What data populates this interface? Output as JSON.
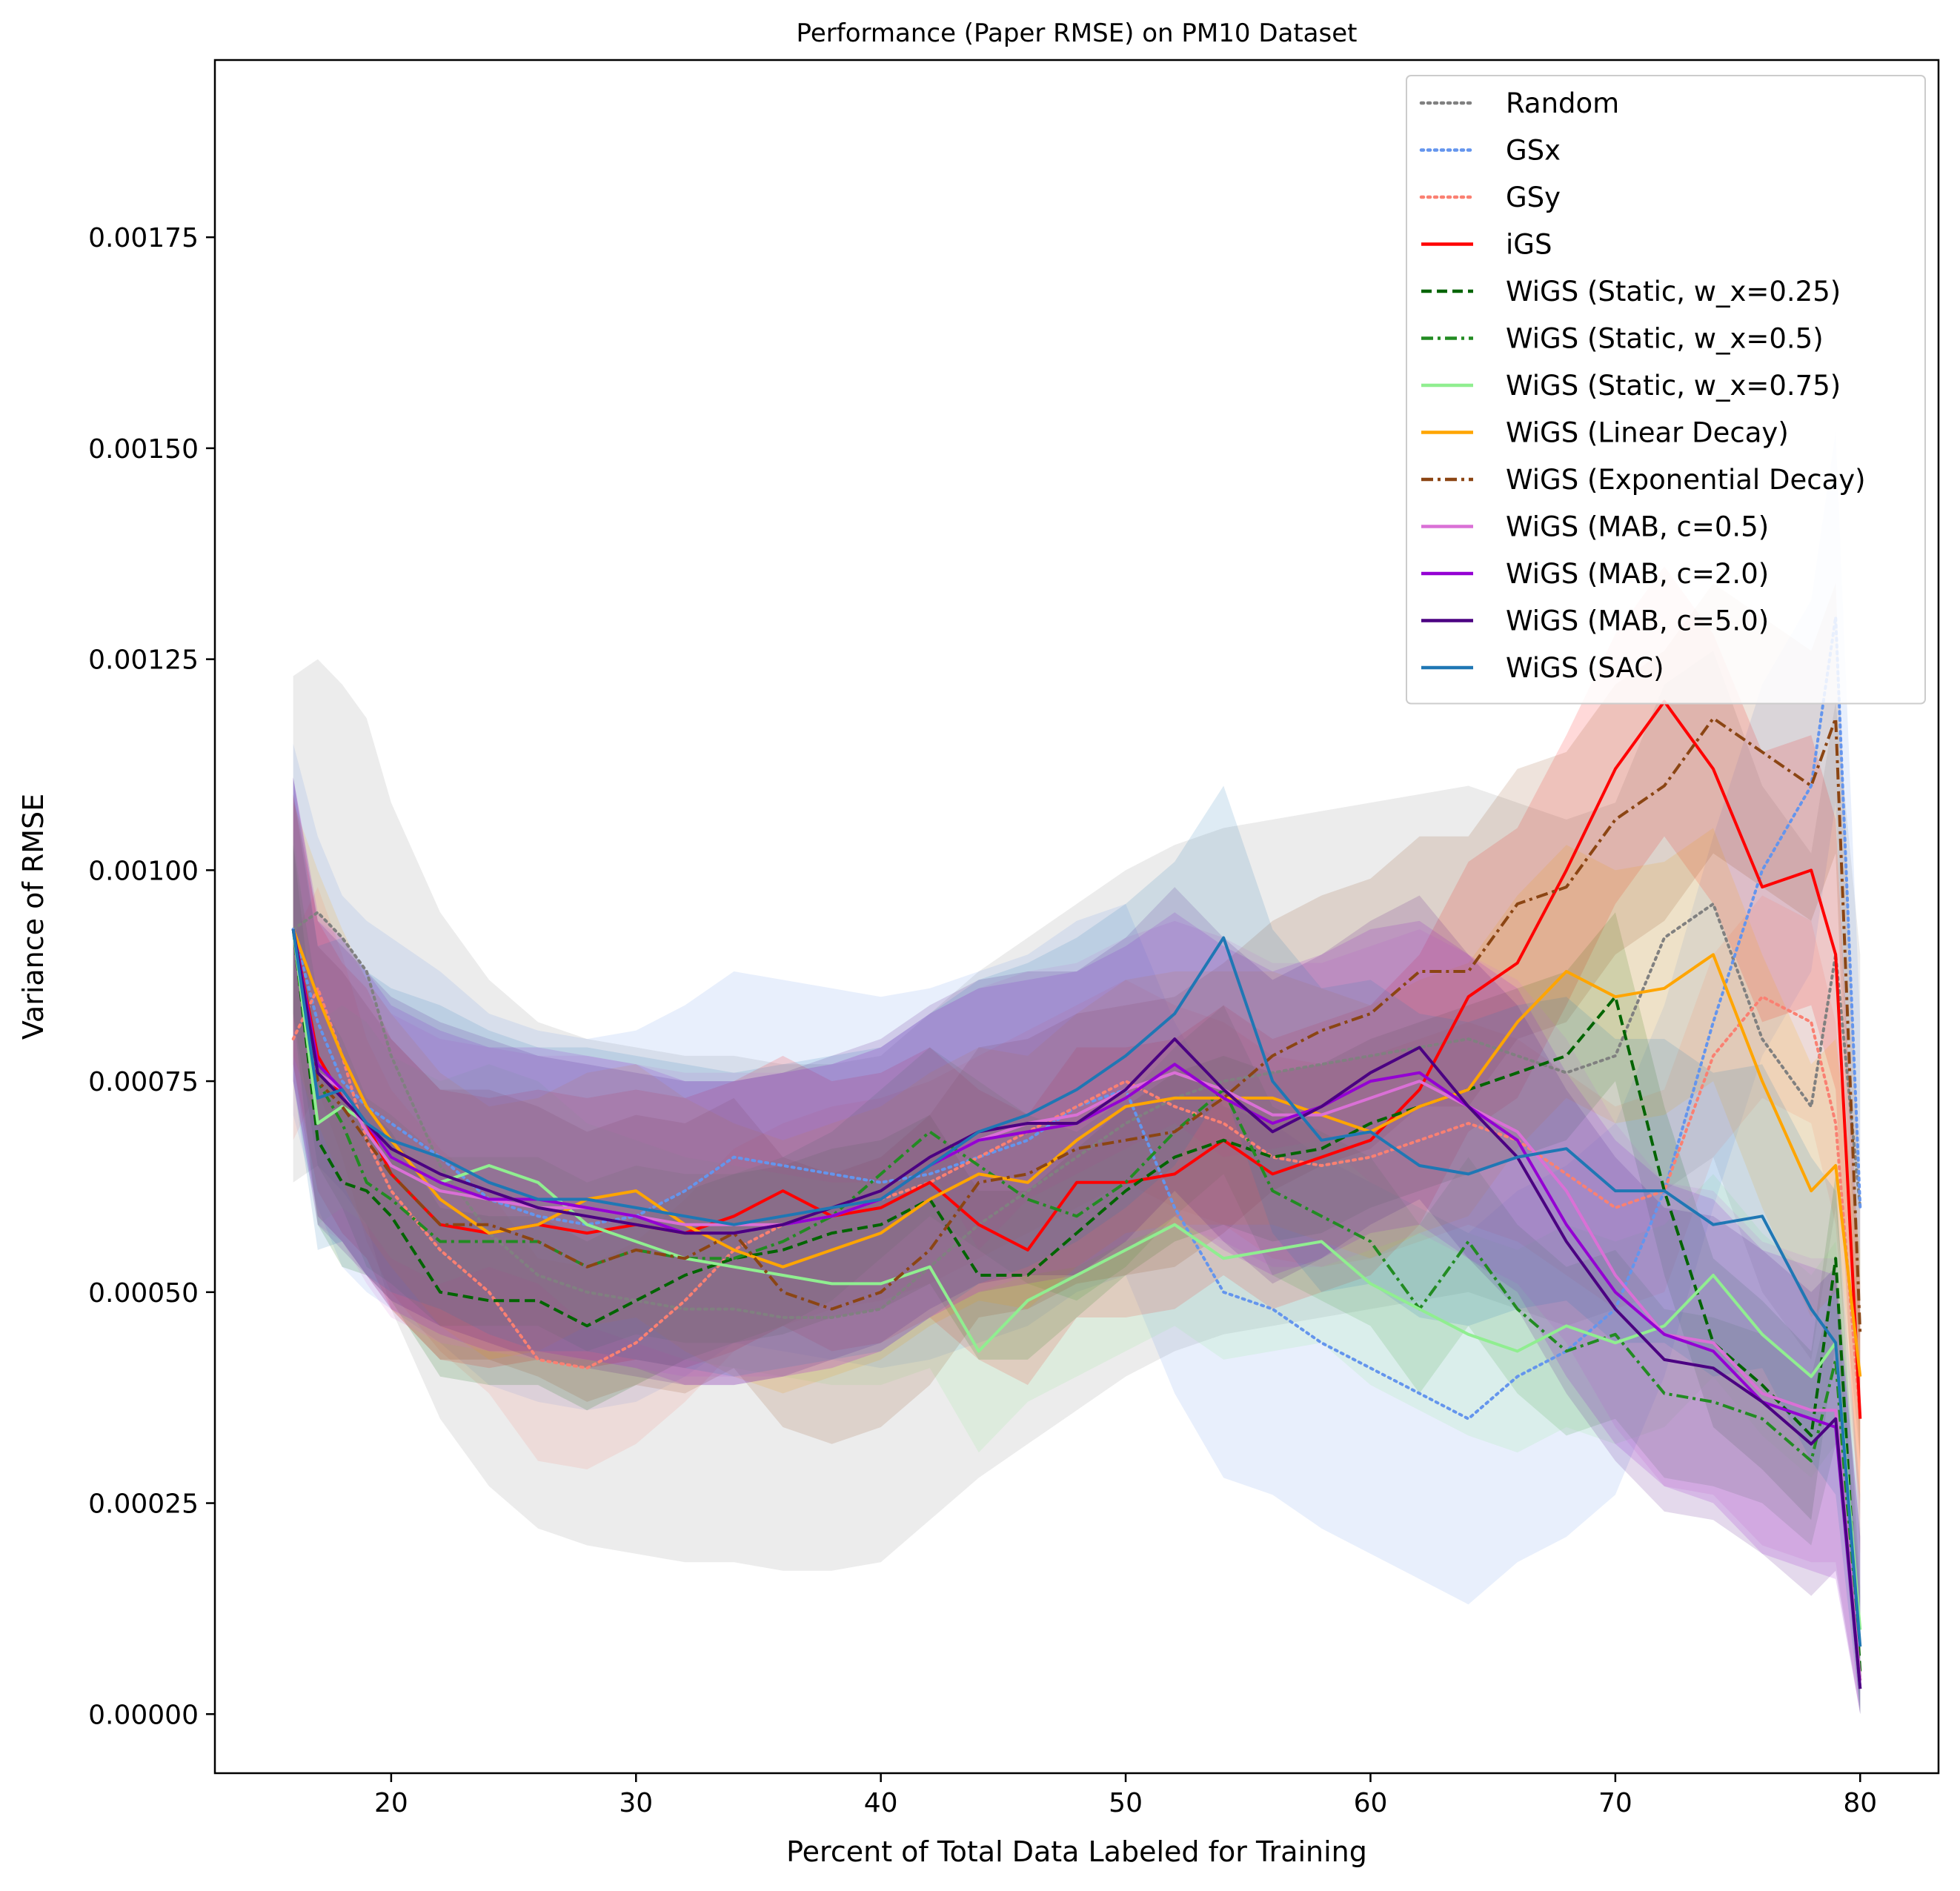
{
  "chart_data": {
    "type": "line",
    "title": "Performance (Paper RMSE) on PM10 Dataset",
    "xlabel": "Percent of Total Data Labeled for Training",
    "ylabel": "Variance of RMSE",
    "xlim": [
      12.8,
      83.2
    ],
    "ylim": [
      -7e-05,
      0.00196
    ],
    "xticks": [
      20,
      30,
      40,
      50,
      60,
      70,
      80
    ],
    "xtick_labels": [
      "20",
      "30",
      "40",
      "50",
      "60",
      "70",
      "80"
    ],
    "yticks": [
      0,
      0.00025,
      0.0005,
      0.00075,
      0.001,
      0.00125,
      0.0015,
      0.00175
    ],
    "ytick_labels": [
      "0.00000",
      "0.00025",
      "0.00050",
      "0.00075",
      "0.00100",
      "0.00125",
      "0.00150",
      "0.00175"
    ],
    "grid": false,
    "legend_position": "top-right",
    "x": [
      16,
      17,
      18,
      19,
      20,
      22,
      24,
      26,
      28,
      30,
      32,
      34,
      36,
      38,
      40,
      42,
      44,
      46,
      48,
      50,
      52,
      54,
      56,
      58,
      60,
      62,
      64,
      66,
      68,
      70,
      72,
      74,
      76,
      78,
      79,
      80
    ],
    "series": [
      {
        "name": "Random",
        "color": "#808080",
        "dash": "dotted",
        "band": 0.0003,
        "values": [
          0.00093,
          0.00095,
          0.00092,
          0.00088,
          0.00078,
          0.00065,
          0.00057,
          0.00052,
          0.0005,
          0.00049,
          0.00048,
          0.00048,
          0.00047,
          0.00047,
          0.00048,
          0.00053,
          0.00058,
          0.00062,
          0.00066,
          0.0007,
          0.00073,
          0.00075,
          0.00076,
          0.00077,
          0.00078,
          0.00079,
          0.0008,
          0.00078,
          0.00076,
          0.00078,
          0.00092,
          0.00096,
          0.0008,
          0.00072,
          0.0009,
          0.0006
        ]
      },
      {
        "name": "GSx",
        "color": "#6495ED",
        "dash": "dotted",
        "band": 0.00022,
        "values": [
          0.00093,
          0.00082,
          0.00075,
          0.00072,
          0.0007,
          0.00066,
          0.00061,
          0.00059,
          0.00058,
          0.00059,
          0.00062,
          0.00066,
          0.00065,
          0.00064,
          0.00063,
          0.00064,
          0.00066,
          0.00068,
          0.00072,
          0.00074,
          0.0006,
          0.0005,
          0.00048,
          0.00044,
          0.00041,
          0.00038,
          0.00035,
          0.0004,
          0.00043,
          0.00048,
          0.00062,
          0.00082,
          0.001,
          0.0011,
          0.0013,
          0.0006
        ]
      },
      {
        "name": "GSy",
        "color": "#FA8072",
        "dash": "dotted",
        "band": 0.00012,
        "values": [
          0.0008,
          0.00086,
          0.00078,
          0.00068,
          0.00062,
          0.00055,
          0.0005,
          0.00042,
          0.00041,
          0.00044,
          0.00049,
          0.00055,
          0.00058,
          0.0006,
          0.00061,
          0.00063,
          0.00066,
          0.00069,
          0.00072,
          0.00075,
          0.00072,
          0.0007,
          0.00066,
          0.00065,
          0.00066,
          0.00068,
          0.0007,
          0.00068,
          0.00064,
          0.0006,
          0.00062,
          0.00078,
          0.00085,
          0.00082,
          0.0007,
          0.00035
        ]
      },
      {
        "name": "iGS",
        "color": "#FF0000",
        "dash": "solid",
        "band": 0.00016,
        "values": [
          0.00093,
          0.00078,
          0.00073,
          0.0007,
          0.00064,
          0.00058,
          0.00057,
          0.00058,
          0.00057,
          0.00058,
          0.00057,
          0.00059,
          0.00062,
          0.00059,
          0.0006,
          0.00063,
          0.00058,
          0.00055,
          0.00063,
          0.00063,
          0.00064,
          0.00068,
          0.00064,
          0.00066,
          0.00068,
          0.00074,
          0.00085,
          0.00089,
          0.001,
          0.00112,
          0.0012,
          0.00112,
          0.00098,
          0.001,
          0.0009,
          0.00035
        ]
      },
      {
        "name": "WiGS (Static, w_x=0.25)",
        "color": "#006400",
        "dash": "dashed",
        "band": 0.0001,
        "values": [
          0.00093,
          0.00068,
          0.00063,
          0.00062,
          0.00059,
          0.0005,
          0.00049,
          0.00049,
          0.00046,
          0.00049,
          0.00052,
          0.00054,
          0.00055,
          0.00057,
          0.00058,
          0.00061,
          0.00052,
          0.00052,
          0.00057,
          0.00062,
          0.00066,
          0.00068,
          0.00066,
          0.00067,
          0.0007,
          0.00072,
          0.00074,
          0.00076,
          0.00078,
          0.00085,
          0.00062,
          0.00044,
          0.00039,
          0.00033,
          0.00054,
          5e-05
        ]
      },
      {
        "name": "WiGS (Static, w_x=0.5)",
        "color": "#228B22",
        "dash": "dashdot",
        "band": 0.0001,
        "values": [
          0.00093,
          0.00075,
          0.0007,
          0.00063,
          0.00061,
          0.00056,
          0.00056,
          0.00056,
          0.00053,
          0.00055,
          0.00054,
          0.00054,
          0.00056,
          0.00059,
          0.00064,
          0.00069,
          0.00065,
          0.00061,
          0.00059,
          0.00063,
          0.00069,
          0.00074,
          0.00062,
          0.00059,
          0.00056,
          0.00048,
          0.00056,
          0.00048,
          0.00043,
          0.00045,
          0.00038,
          0.00037,
          0.00035,
          0.0003,
          0.00042,
          4e-05
        ]
      },
      {
        "name": "WiGS (Static, w_x=0.75)",
        "color": "#90EE90",
        "dash": "solid",
        "band": 0.00012,
        "values": [
          0.00093,
          0.0007,
          0.00072,
          0.0007,
          0.00066,
          0.00063,
          0.00065,
          0.00063,
          0.00058,
          0.00056,
          0.00054,
          0.00053,
          0.00052,
          0.00051,
          0.00051,
          0.00053,
          0.00043,
          0.00049,
          0.00052,
          0.00055,
          0.00058,
          0.00054,
          0.00055,
          0.00056,
          0.00051,
          0.00048,
          0.00045,
          0.00043,
          0.00046,
          0.00044,
          0.00046,
          0.00052,
          0.00045,
          0.0004,
          0.00044,
          0.0001
        ]
      },
      {
        "name": "WiGS (Linear Decay)",
        "color": "#FFA500",
        "dash": "solid",
        "band": 0.00015,
        "values": [
          0.00093,
          0.00085,
          0.00078,
          0.00072,
          0.00068,
          0.00061,
          0.00057,
          0.00058,
          0.00061,
          0.00062,
          0.00058,
          0.00055,
          0.00053,
          0.00055,
          0.00057,
          0.00061,
          0.00064,
          0.00063,
          0.00068,
          0.00072,
          0.00073,
          0.00073,
          0.00073,
          0.00071,
          0.00069,
          0.00072,
          0.00074,
          0.00082,
          0.00088,
          0.00085,
          0.00086,
          0.0009,
          0.00075,
          0.00062,
          0.00065,
          0.0004
        ]
      },
      {
        "name": "WiGS (Exponential Decay)",
        "color": "#8B4513",
        "dash": "dashdot",
        "band": 0.00016,
        "values": [
          0.00093,
          0.00075,
          0.00072,
          0.00068,
          0.00064,
          0.00058,
          0.00058,
          0.00056,
          0.00053,
          0.00055,
          0.00054,
          0.00057,
          0.0005,
          0.00048,
          0.0005,
          0.00055,
          0.00063,
          0.00064,
          0.00067,
          0.00068,
          0.00069,
          0.00073,
          0.00078,
          0.00081,
          0.00083,
          0.00088,
          0.00088,
          0.00096,
          0.00098,
          0.00106,
          0.0011,
          0.00118,
          0.00114,
          0.0011,
          0.00118,
          0.00045
        ]
      },
      {
        "name": "WiGS (MAB, c=0.5)",
        "color": "#DA70D6",
        "dash": "solid",
        "band": 0.00018,
        "values": [
          0.00093,
          0.00076,
          0.00074,
          0.00069,
          0.00065,
          0.00062,
          0.00061,
          0.0006,
          0.0006,
          0.00059,
          0.00058,
          0.00058,
          0.00058,
          0.00059,
          0.00061,
          0.00065,
          0.00068,
          0.0007,
          0.00071,
          0.00074,
          0.00076,
          0.00074,
          0.00071,
          0.00071,
          0.00073,
          0.00075,
          0.00072,
          0.00069,
          0.00062,
          0.00052,
          0.00045,
          0.00044,
          0.00038,
          0.00036,
          0.00036,
          4e-05
        ]
      },
      {
        "name": "WiGS (MAB, c=2.0)",
        "color": "#9400D3",
        "dash": "solid",
        "band": 0.00018,
        "values": [
          0.00093,
          0.00077,
          0.00074,
          0.0007,
          0.00066,
          0.00063,
          0.00061,
          0.00061,
          0.0006,
          0.00059,
          0.00057,
          0.00057,
          0.00058,
          0.00059,
          0.00061,
          0.00065,
          0.00068,
          0.00069,
          0.0007,
          0.00073,
          0.00077,
          0.00073,
          0.0007,
          0.00072,
          0.00075,
          0.00076,
          0.00072,
          0.00068,
          0.00058,
          0.0005,
          0.00045,
          0.00043,
          0.00037,
          0.00035,
          0.00034,
          3e-05
        ]
      },
      {
        "name": "WiGS (MAB, c=5.0)",
        "color": "#4B0082",
        "dash": "solid",
        "band": 0.00018,
        "values": [
          0.00093,
          0.00076,
          0.00073,
          0.0007,
          0.00067,
          0.00064,
          0.00062,
          0.0006,
          0.00059,
          0.00058,
          0.00057,
          0.00057,
          0.00058,
          0.0006,
          0.00062,
          0.00066,
          0.00069,
          0.0007,
          0.0007,
          0.00074,
          0.0008,
          0.00074,
          0.00069,
          0.00072,
          0.00076,
          0.00079,
          0.00072,
          0.00066,
          0.00056,
          0.00048,
          0.00042,
          0.00041,
          0.00037,
          0.00032,
          0.00035,
          3e-05
        ]
      },
      {
        "name": "WiGS (SAC)",
        "color": "#1F77B4",
        "dash": "solid",
        "band": 0.00018,
        "values": [
          0.00093,
          0.00073,
          0.00074,
          0.0007,
          0.00068,
          0.00066,
          0.00063,
          0.00061,
          0.00061,
          0.0006,
          0.00059,
          0.00058,
          0.00059,
          0.0006,
          0.00061,
          0.00065,
          0.00069,
          0.00071,
          0.00074,
          0.00078,
          0.00083,
          0.00092,
          0.00075,
          0.00068,
          0.00069,
          0.00065,
          0.00064,
          0.00066,
          0.00067,
          0.00062,
          0.00062,
          0.00058,
          0.00059,
          0.00048,
          0.00044,
          8e-05
        ]
      }
    ]
  }
}
